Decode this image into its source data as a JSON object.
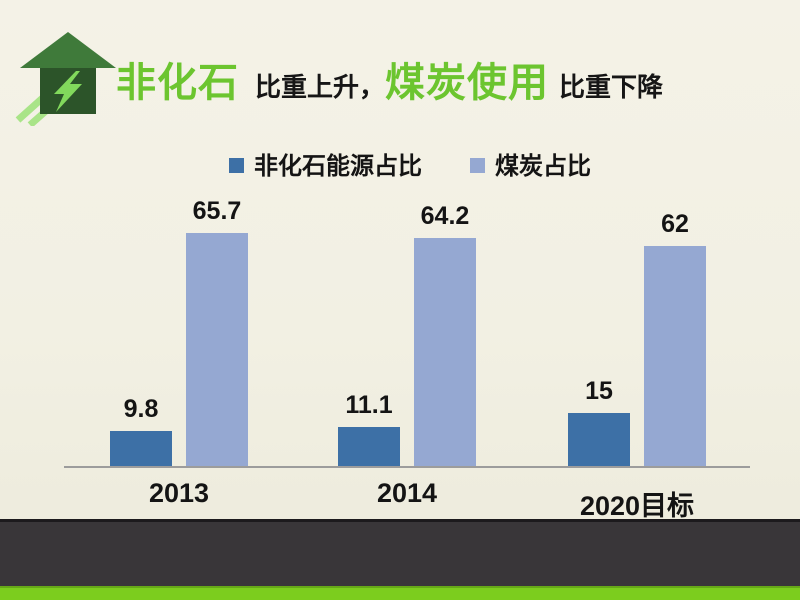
{
  "title": {
    "highlight1": "非化石",
    "normal1": "比重上升，",
    "highlight2": "煤炭使用",
    "normal2": "比重下降"
  },
  "icon": {
    "name": "house-energy-icon"
  },
  "colors": {
    "accent_green": "#6cc52f",
    "series1_blue": "#3d70a6",
    "series2_light_blue": "#95a8d2",
    "background_cream": "#f2f0e3",
    "footer_dark": "#393639",
    "footer_green": "#7ccd1e",
    "axis_gray": "#9c9c9c"
  },
  "chart_data": {
    "type": "bar",
    "categories": [
      "2013",
      "2014",
      "2020目标"
    ],
    "series": [
      {
        "name": "非化石能源占比",
        "color": "#3d70a6",
        "values": [
          9.8,
          11.1,
          15
        ]
      },
      {
        "name": "煤炭占比",
        "color": "#95a8d2",
        "values": [
          65.7,
          64.2,
          62
        ]
      }
    ],
    "title": "",
    "xlabel": "",
    "ylabel": "",
    "ylim": [
      0,
      78
    ],
    "grid": false,
    "legend_position": "top",
    "value_labels": true
  }
}
